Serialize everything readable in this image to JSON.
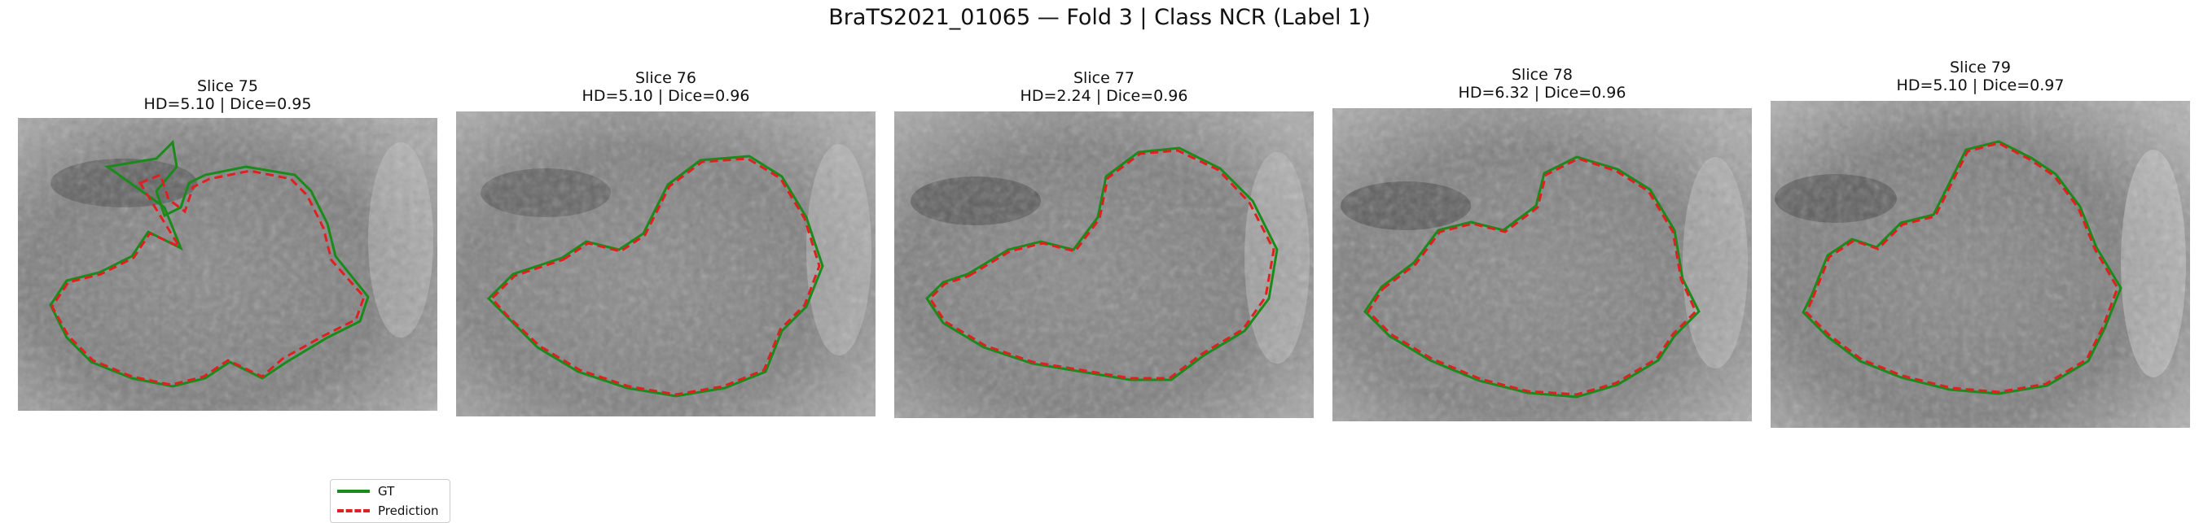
{
  "figure": {
    "title": "BraTS2021_01065 — Fold 3 | Class NCR (Label 1)"
  },
  "colors": {
    "gt": "#1a8a1a",
    "prediction": "#e02020"
  },
  "legend": {
    "gt_label": "GT",
    "prediction_label": "Prediction",
    "location": "lower-right of first panel"
  },
  "panels": [
    {
      "slice_label": "Slice 75",
      "metrics_label": "HD=5.10 | Dice=0.95",
      "hd": 5.1,
      "dice": 0.95
    },
    {
      "slice_label": "Slice 76",
      "metrics_label": "HD=5.10 | Dice=0.96",
      "hd": 5.1,
      "dice": 0.96
    },
    {
      "slice_label": "Slice 77",
      "metrics_label": "HD=2.24 | Dice=0.96",
      "hd": 2.24,
      "dice": 0.96
    },
    {
      "slice_label": "Slice 78",
      "metrics_label": "HD=6.32 | Dice=0.96",
      "hd": 6.32,
      "dice": 0.96
    },
    {
      "slice_label": "Slice 79",
      "metrics_label": "HD=5.10 | Dice=0.97",
      "hd": 5.1,
      "dice": 0.97
    }
  ]
}
